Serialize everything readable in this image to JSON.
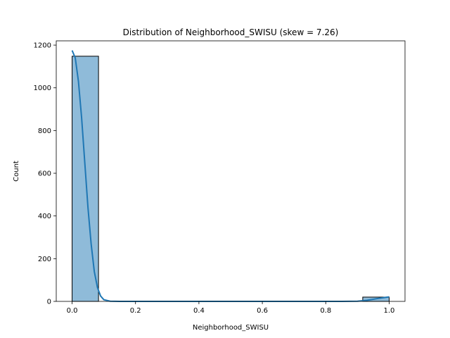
{
  "chart_data": {
    "type": "bar",
    "title": "Distribution of Neighborhood_SWISU (skew = 7.26)",
    "xlabel": "Neighborhood_SWISU",
    "ylabel": "Count",
    "xlim": [
      -0.05,
      1.05
    ],
    "ylim": [
      0,
      1220
    ],
    "xticks": [
      0.0,
      0.2,
      0.4,
      0.6,
      0.8,
      1.0
    ],
    "xtick_labels": [
      "0.0",
      "0.2",
      "0.4",
      "0.6",
      "0.8",
      "1.0"
    ],
    "yticks": [
      0,
      200,
      400,
      600,
      800,
      1000,
      1200
    ],
    "ytick_labels": [
      "0",
      "200",
      "400",
      "600",
      "800",
      "1000",
      "1200"
    ],
    "bins": [
      {
        "x0": 0.0,
        "x1": 0.0833,
        "count": 1148
      },
      {
        "x0": 0.0833,
        "x1": 0.1667,
        "count": 0
      },
      {
        "x0": 0.1667,
        "x1": 0.25,
        "count": 0
      },
      {
        "x0": 0.25,
        "x1": 0.3333,
        "count": 0
      },
      {
        "x0": 0.3333,
        "x1": 0.4167,
        "count": 0
      },
      {
        "x0": 0.4167,
        "x1": 0.5,
        "count": 0
      },
      {
        "x0": 0.5,
        "x1": 0.5833,
        "count": 0
      },
      {
        "x0": 0.5833,
        "x1": 0.6667,
        "count": 0
      },
      {
        "x0": 0.6667,
        "x1": 0.75,
        "count": 0
      },
      {
        "x0": 0.75,
        "x1": 0.8333,
        "count": 0
      },
      {
        "x0": 0.8333,
        "x1": 0.9167,
        "count": 0
      },
      {
        "x0": 0.9167,
        "x1": 1.0,
        "count": 20
      }
    ],
    "kde": {
      "x": [
        0.0,
        0.01,
        0.02,
        0.03,
        0.04,
        0.05,
        0.06,
        0.07,
        0.08,
        0.09,
        0.1,
        0.12,
        0.15,
        0.2,
        0.3,
        0.5,
        0.7,
        0.85,
        0.9,
        0.93,
        0.95,
        0.97,
        0.99,
        1.0
      ],
      "y": [
        1175,
        1140,
        1030,
        860,
        650,
        440,
        270,
        140,
        65,
        25,
        8,
        1,
        0,
        0,
        0,
        0,
        0,
        0,
        1,
        5,
        10,
        15,
        19,
        21
      ]
    },
    "colors": {
      "bar_fill": "#1f77b4",
      "bar_fill_opacity": 0.5,
      "bar_edge": "#000000",
      "kde_line": "#1f77b4"
    },
    "grid": false,
    "legend": false
  }
}
